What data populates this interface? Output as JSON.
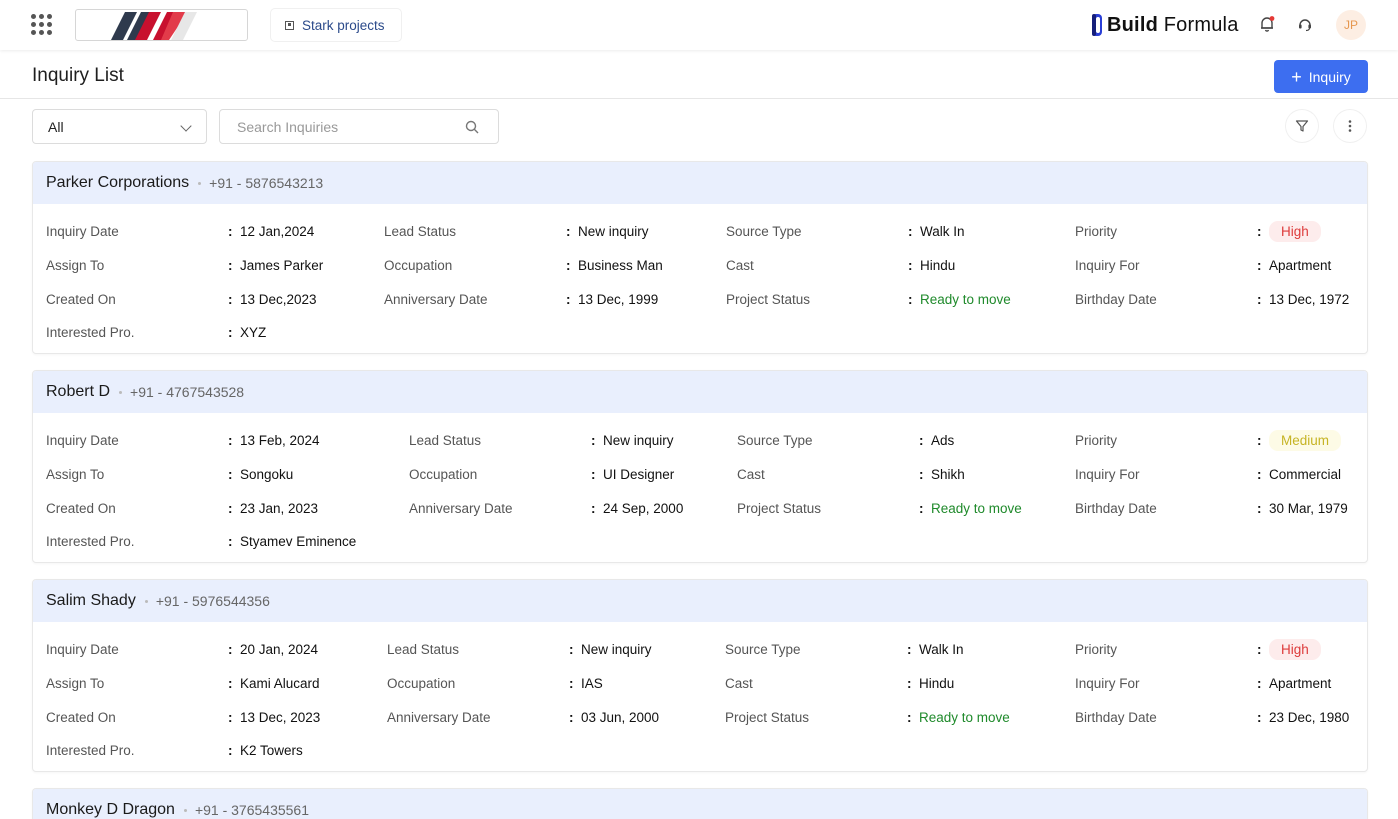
{
  "nav": {
    "project_label": "Stark projects",
    "brand_bold": "Build",
    "brand_light": "Formula",
    "avatar_initials": "JP"
  },
  "header": {
    "title": "Inquiry List",
    "add_label": "Inquiry"
  },
  "filters": {
    "select_value": "All",
    "search_placeholder": "Search Inquiries"
  },
  "labels": {
    "inquiry_date": "Inquiry Date",
    "lead_status": "Lead Status",
    "source_type": "Source Type",
    "priority": "Priority",
    "assign_to": "Assign To",
    "occupation": "Occupation",
    "cast": "Cast",
    "inquiry_for": "Inquiry For",
    "created_on": "Created On",
    "anniversary_date": "Anniversary Date",
    "project_status": "Project Status",
    "birthday_date": "Birthday Date",
    "interested_pro": "Interested Pro.",
    "colon": ":"
  },
  "inquiries": [
    {
      "name": "Parker Corporations",
      "phone": "+91 - 5876543213",
      "inquiry_date": "12 Jan,2024",
      "lead_status": "New inquiry",
      "source_type": "Walk In",
      "priority": "High",
      "assign_to": "James Parker",
      "occupation": "Business Man",
      "cast": "Hindu",
      "inquiry_for": "Apartment",
      "created_on": "13 Dec,2023",
      "anniversary_date": "13 Dec, 1999",
      "project_status": "Ready to move",
      "birthday_date": "13 Dec, 1972",
      "interested_pro": "XYZ"
    },
    {
      "name": "Robert D",
      "phone": "+91 - 4767543528",
      "inquiry_date": "13 Feb, 2024",
      "lead_status": "New inquiry",
      "source_type": "Ads",
      "priority": "Medium",
      "assign_to": "Songoku",
      "occupation": "UI Designer",
      "cast": "Shikh",
      "inquiry_for": "Commercial",
      "created_on": "23 Jan, 2023",
      "anniversary_date": "24 Sep, 2000",
      "project_status": "Ready to move",
      "birthday_date": "30 Mar, 1979",
      "interested_pro": "Styamev Eminence"
    },
    {
      "name": "Salim Shady",
      "phone": "+91 - 5976544356",
      "inquiry_date": "20 Jan, 2024",
      "lead_status": "New inquiry",
      "source_type": "Walk In",
      "priority": "High",
      "assign_to": "Kami Alucard",
      "occupation": "IAS",
      "cast": "Hindu",
      "inquiry_for": "Apartment",
      "created_on": "13 Dec, 2023",
      "anniversary_date": "03 Jun, 2000",
      "project_status": "Ready to move",
      "birthday_date": "23 Dec, 1980",
      "interested_pro": "K2 Towers"
    },
    {
      "name": "Monkey D Dragon",
      "phone": "+91 - 3765435561"
    }
  ],
  "colors": {
    "accent": "#3d6ef0",
    "card_header": "#e9effd",
    "status_green": "#1f8a2b",
    "priority_high": "#dd3b3b",
    "priority_medium": "#c6b425",
    "avatar_text": "#e6974f"
  }
}
